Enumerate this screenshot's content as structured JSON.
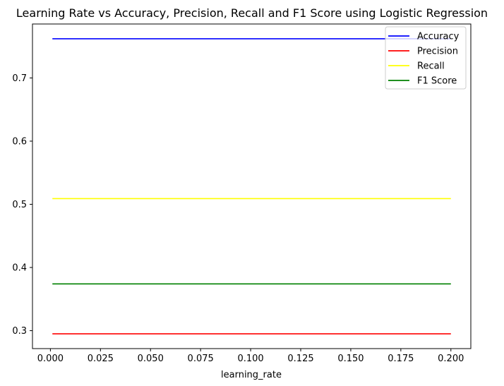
{
  "chart_data": {
    "type": "line",
    "title": "Learning Rate vs Accuracy, Precision, Recall and F1 Score using Logistic Regression",
    "xlabel": "learning_rate",
    "ylabel": "",
    "x": [
      0.001,
      0.2
    ],
    "xlim": [
      -0.00895,
      0.20995
    ],
    "ylim": [
      0.2716,
      0.7854
    ],
    "x_ticks": [
      0.0,
      0.025,
      0.05,
      0.075,
      0.1,
      0.125,
      0.15,
      0.175,
      0.2
    ],
    "x_tick_labels": [
      "0.000",
      "0.025",
      "0.050",
      "0.075",
      "0.100",
      "0.125",
      "0.150",
      "0.175",
      "0.200"
    ],
    "y_ticks": [
      0.3,
      0.4,
      0.5,
      0.6,
      0.7
    ],
    "y_tick_labels": [
      "0.3",
      "0.4",
      "0.5",
      "0.6",
      "0.7"
    ],
    "grid": false,
    "legend_position": "top-right",
    "series": [
      {
        "name": "Accuracy",
        "color": "#0000ff",
        "values": [
          0.762,
          0.762
        ]
      },
      {
        "name": "Precision",
        "color": "#ff0000",
        "values": [
          0.295,
          0.295
        ]
      },
      {
        "name": "Recall",
        "color": "#ffff00",
        "values": [
          0.509,
          0.509
        ]
      },
      {
        "name": "F1 Score",
        "color": "#008000",
        "values": [
          0.374,
          0.374
        ]
      }
    ]
  }
}
